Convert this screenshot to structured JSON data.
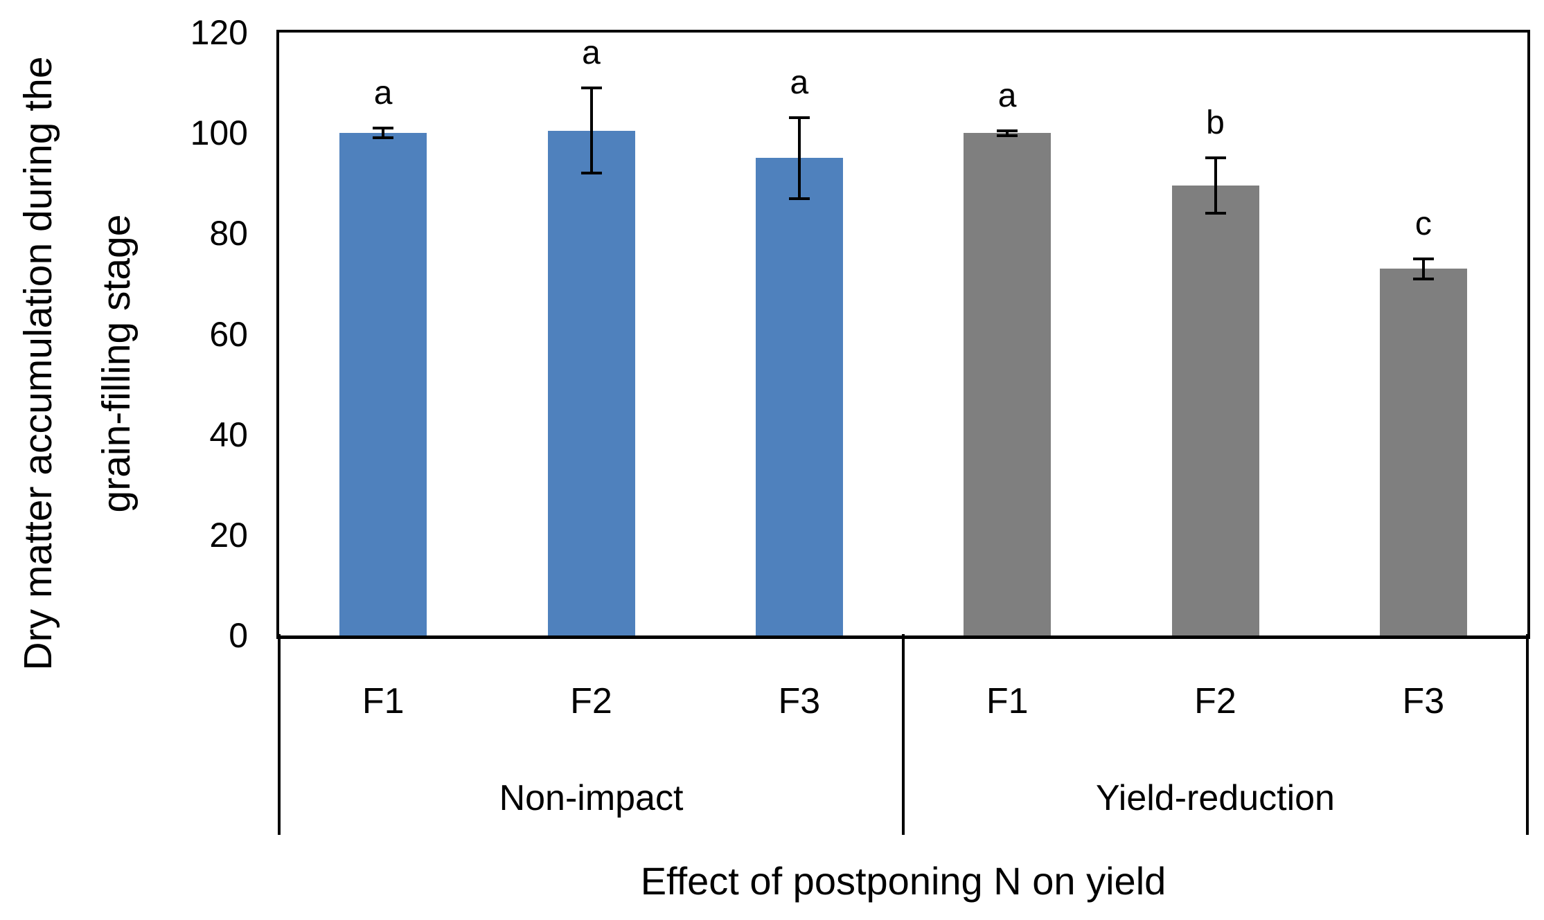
{
  "figure": {
    "background": "#ffffff"
  },
  "colors": {
    "non_impact_series": "#4F81BD",
    "yield_reduction_series": "#7F7F7F",
    "axis": "#000000",
    "text": "#000000"
  },
  "chart_data": {
    "type": "bar",
    "title": "",
    "xlabel": "Effect of postponing N on yield",
    "ylabel": "Dry matter accumulation during the grain-filling stage",
    "ylabel_lines": [
      "Dry matter accumulation during the",
      "grain-filling stage"
    ],
    "ylim": [
      0,
      120
    ],
    "yticks": [
      0,
      20,
      40,
      60,
      80,
      100,
      120
    ],
    "grid": false,
    "legend_position": "none",
    "error_bars": true,
    "groups": [
      {
        "label": "Non-impact",
        "color": "#4F81BD",
        "bars": [
          {
            "category": "F1",
            "value": 100,
            "error": 1,
            "sig": "a"
          },
          {
            "category": "F2",
            "value": 100.5,
            "error": 8.5,
            "sig": "a"
          },
          {
            "category": "F3",
            "value": 95,
            "error": 8,
            "sig": "a"
          }
        ]
      },
      {
        "label": "Yield-reduction",
        "color": "#7F7F7F",
        "bars": [
          {
            "category": "F1",
            "value": 100,
            "error": 0.5,
            "sig": "a"
          },
          {
            "category": "F2",
            "value": 89.5,
            "error": 5.5,
            "sig": "b"
          },
          {
            "category": "F3",
            "value": 73,
            "error": 2,
            "sig": "c"
          }
        ]
      }
    ]
  }
}
